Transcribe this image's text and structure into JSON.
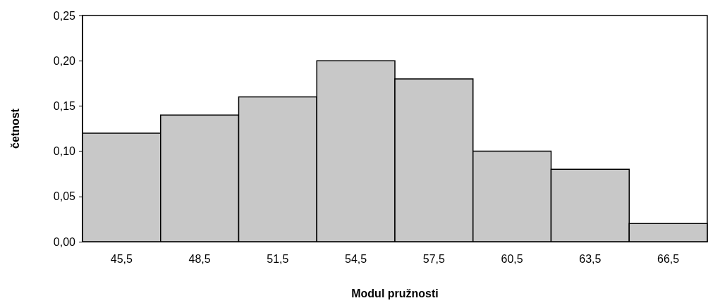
{
  "chart_data": {
    "type": "histogram",
    "xlabel": "Modul pružnosti",
    "ylabel": "četnost",
    "bins": [
      44,
      47,
      50,
      53,
      56,
      59,
      62,
      65,
      68
    ],
    "values": [
      0.12,
      0.14,
      0.16,
      0.2,
      0.18,
      0.1,
      0.08,
      0.02
    ],
    "color": "#c8c8c8",
    "xlim": [
      44,
      68
    ],
    "xticks": [
      {
        "value": 45.5,
        "label": "45,5"
      },
      {
        "value": 48.5,
        "label": "48,5"
      },
      {
        "value": 51.5,
        "label": "51,5"
      },
      {
        "value": 54.5,
        "label": "54,5"
      },
      {
        "value": 57.5,
        "label": "57,5"
      },
      {
        "value": 60.5,
        "label": "60,5"
      },
      {
        "value": 63.5,
        "label": "63,5"
      },
      {
        "value": 66.5,
        "label": "66,5"
      }
    ],
    "ylim": [
      0,
      0.25
    ],
    "yticks": [
      {
        "value": 0,
        "label": "0,00"
      },
      {
        "value": 0.05,
        "label": "0,05"
      },
      {
        "value": 0.1,
        "label": "0,10"
      },
      {
        "value": 0.15,
        "label": "0,15"
      },
      {
        "value": 0.2,
        "label": "0,20"
      },
      {
        "value": 0.25,
        "label": "0,25"
      }
    ],
    "grid": false
  }
}
